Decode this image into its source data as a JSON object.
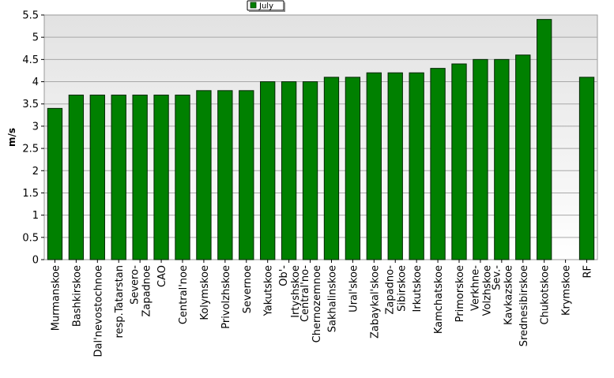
{
  "chart_data": {
    "type": "bar",
    "title": "",
    "xlabel": "",
    "ylabel": "m/s",
    "ylim": [
      0,
      5.5
    ],
    "yticks": [
      "0",
      "0.5",
      "1",
      "1.5",
      "2",
      "2.5",
      "3",
      "3.5",
      "4",
      "4.5",
      "5",
      "5.5"
    ],
    "grid": true,
    "legend_position": "top-center",
    "categories": [
      "Murmanskoe",
      "Bashkirskoe",
      "Dal'nevostochnoe",
      "resp.Tatarstan",
      "Severo-\nZapadnoe",
      "CAO",
      "Central'noe",
      "Kolymskoe",
      "Privolzhskoe",
      "Severnoe",
      "Yakutskoe",
      "Ob'-\nIrtyshskoe",
      "Central'no-\nChernozemnoe",
      "Sakhalinskoe",
      "Ural'skoe",
      "Zabaykal'skoe",
      "Zapadno-\nSibirskoe",
      "Irkutskoe",
      "Kamchatskoe",
      "Primorskoe",
      "Verkhne-\nVolzhskoe",
      "Sev.-\nKavkazskoe",
      "Srednesibirskoe",
      "Chukotskoe",
      "Krymskoe",
      "RF"
    ],
    "series": [
      {
        "name": "July",
        "color": "#008000",
        "values": [
          3.4,
          3.7,
          3.7,
          3.7,
          3.7,
          3.7,
          3.7,
          3.8,
          3.8,
          3.8,
          4.0,
          4.0,
          4.0,
          4.1,
          4.1,
          4.2,
          4.2,
          4.2,
          4.3,
          4.4,
          4.5,
          4.5,
          4.6,
          5.4,
          null,
          4.1
        ]
      }
    ]
  }
}
